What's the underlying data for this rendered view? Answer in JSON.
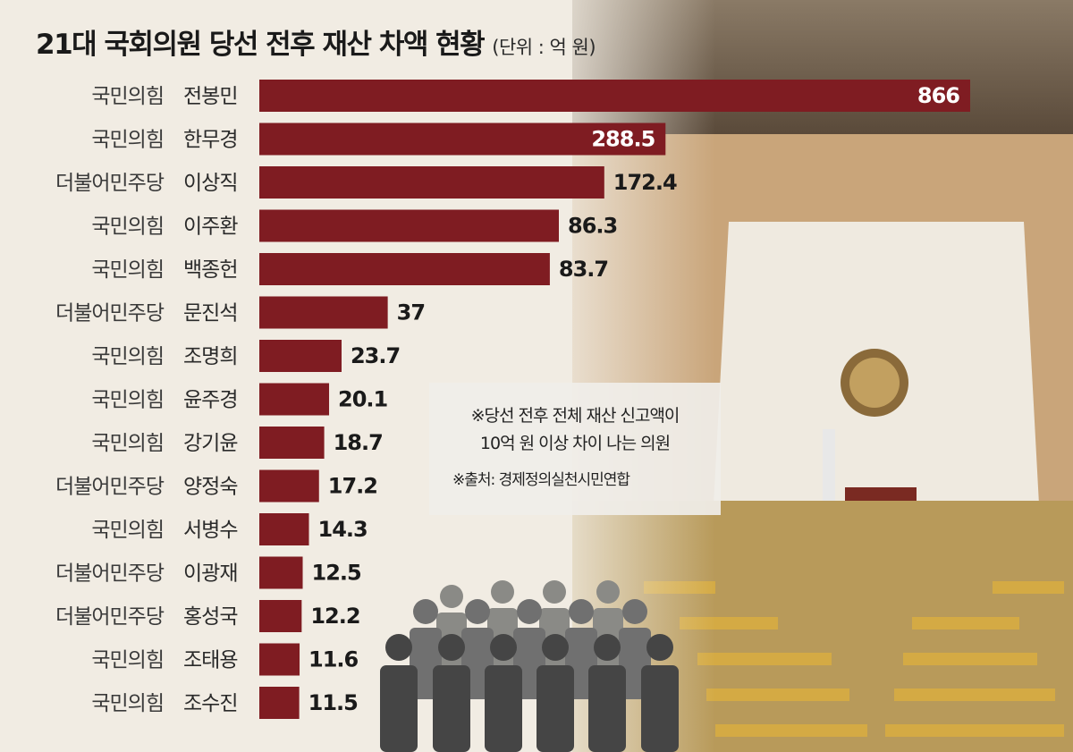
{
  "title": "21대 국회의원 당선 전후 재산 차액 현황",
  "unit": "(단위 : 억 원)",
  "note": {
    "line1": "※당선 전후 전체 재산 신고액이",
    "line2": "10억 원 이상 차이 나는 의원",
    "source": "※출처:  경제정의실천시민연합"
  },
  "colors": {
    "bar": "#7f1c22",
    "value_inside": "#ffffff",
    "value_outside": "#1a1a1a"
  },
  "chart_data": {
    "type": "bar",
    "orientation": "horizontal",
    "title": "21대 국회의원 당선 전후 재산 차액 현황",
    "unit": "(단위 : 억 원)",
    "categories": [
      {
        "party": "국민의힘",
        "name": "전봉민"
      },
      {
        "party": "국민의힘",
        "name": "한무경"
      },
      {
        "party": "더불어민주당",
        "name": "이상직"
      },
      {
        "party": "국민의힘",
        "name": "이주환"
      },
      {
        "party": "국민의힘",
        "name": "백종헌"
      },
      {
        "party": "더불어민주당",
        "name": "문진석"
      },
      {
        "party": "국민의힘",
        "name": "조명희"
      },
      {
        "party": "국민의힘",
        "name": "윤주경"
      },
      {
        "party": "국민의힘",
        "name": "강기윤"
      },
      {
        "party": "더불어민주당",
        "name": "양정숙"
      },
      {
        "party": "국민의힘",
        "name": "서병수"
      },
      {
        "party": "더불어민주당",
        "name": "이광재"
      },
      {
        "party": "더불어민주당",
        "name": "홍성국"
      },
      {
        "party": "국민의힘",
        "name": "조태용"
      },
      {
        "party": "국민의힘",
        "name": "조수진"
      }
    ],
    "values": [
      866,
      288.5,
      172.4,
      86.3,
      83.7,
      37,
      23.7,
      20.1,
      18.7,
      17.2,
      14.3,
      12.5,
      12.2,
      11.6,
      11.5
    ],
    "labels": [
      "866",
      "288.5",
      "172.4",
      "86.3",
      "83.7",
      "37",
      "23.7",
      "20.1",
      "18.7",
      "17.2",
      "14.3",
      "12.5",
      "12.2",
      "11.6",
      "11.5"
    ],
    "axis_scale": "broken",
    "grid": false,
    "legend": "none"
  }
}
